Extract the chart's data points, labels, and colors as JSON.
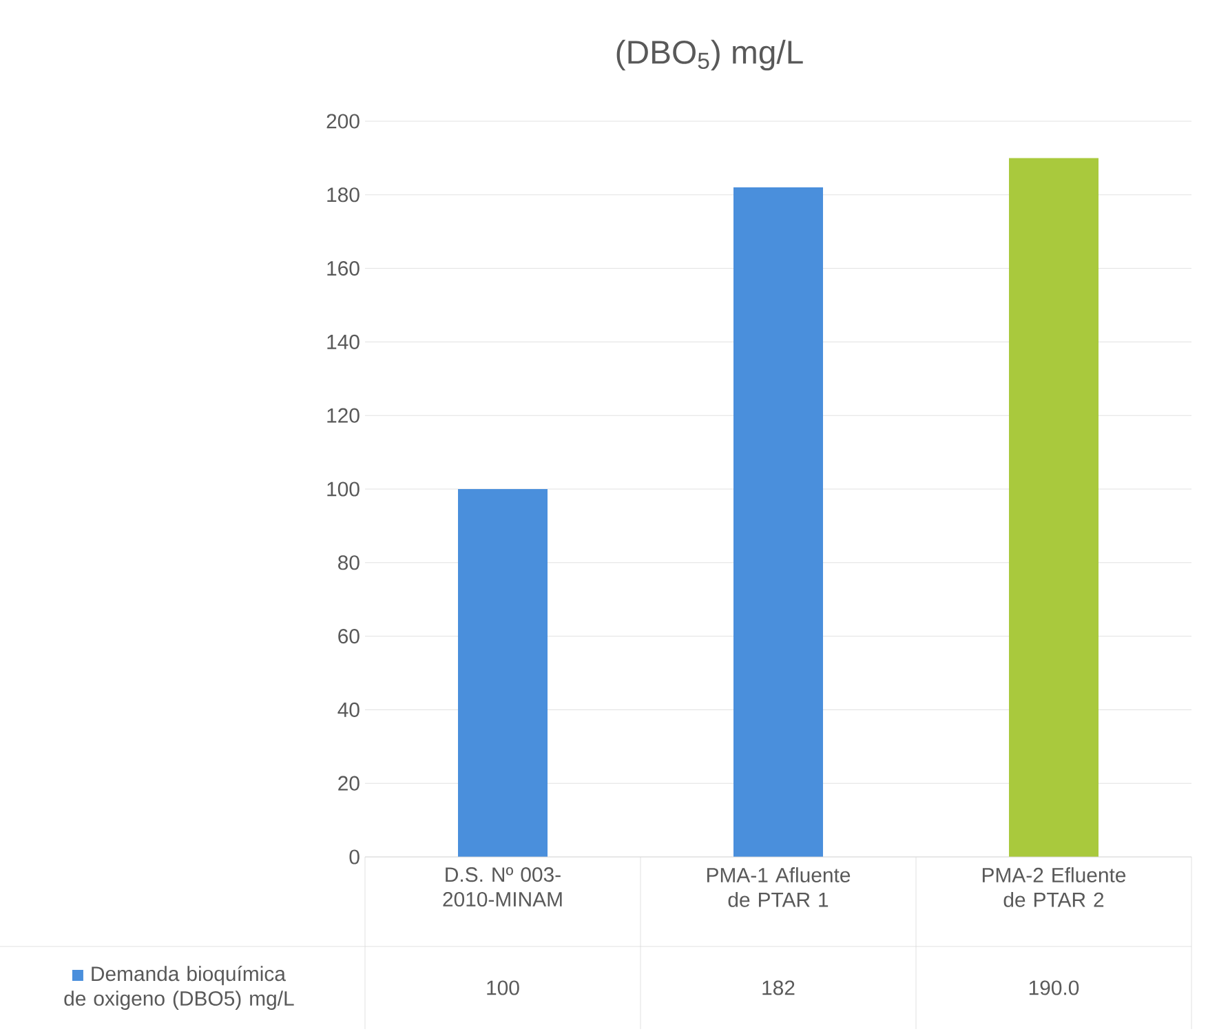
{
  "chart_data": {
    "type": "bar",
    "title": "(DBO$_{5}$) mg/L",
    "categories": [
      "D.S. Nº 003-2010-MINAM",
      "PMA-1 Afluente de PTAR 1",
      "PMA-2 Efluente de PTAR 2"
    ],
    "series": [
      {
        "name": "Demanda bioquímica de oxigeno (DBO5) mg/L",
        "colors": [
          "#4a8fdc",
          "#4a8fdc",
          "#a9c93d"
        ],
        "values": [
          100,
          182,
          190
        ],
        "value_labels": [
          "100",
          "182",
          "190.0"
        ]
      }
    ],
    "ylim": [
      0,
      200
    ],
    "yticks": [
      0,
      20,
      40,
      60,
      80,
      100,
      120,
      140,
      160,
      180,
      200
    ],
    "grid": "y",
    "legend": "bottom left"
  }
}
